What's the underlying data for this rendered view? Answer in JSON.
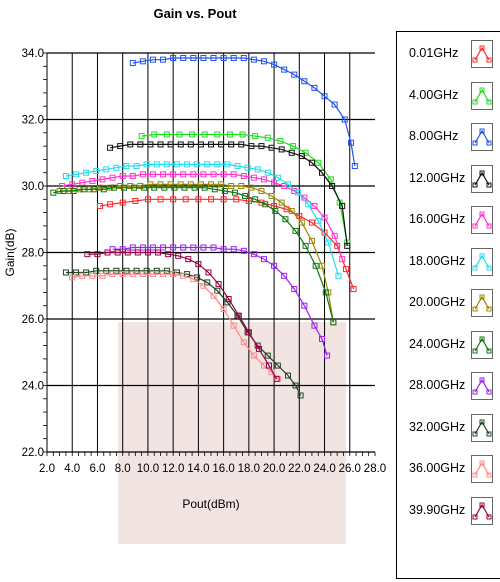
{
  "chart_data": {
    "type": "line",
    "title": "Gain vs. Pout",
    "xlabel": "Pout(dBm)",
    "ylabel": "Gain(dB)",
    "xlim": [
      2.0,
      28.0
    ],
    "ylim": [
      22.0,
      34.0
    ],
    "xticks": [
      "2.0",
      "4.0",
      "6.0",
      "8.0",
      "10.0",
      "12.0",
      "14.0",
      "16.0",
      "18.0",
      "20.0",
      "22.0",
      "24.0",
      "26.0",
      "28.0"
    ],
    "yticks": [
      "22.0",
      "24.0",
      "26.0",
      "28.0",
      "30.0",
      "32.0",
      "34.0"
    ],
    "grid": true,
    "legend_position": "right",
    "series": [
      {
        "name": "0.01GHz",
        "color": "#ff2a2a",
        "x": [
          6.2,
          7.0,
          8.0,
          9.0,
          10.0,
          11.0,
          12.0,
          13.0,
          14.0,
          15.0,
          16.0,
          17.0,
          18.0,
          19.0,
          20.0,
          21.0,
          22.0,
          23.0,
          24.0,
          25.0,
          25.7,
          26.3
        ],
        "y": [
          29.4,
          29.45,
          29.5,
          29.55,
          29.6,
          29.6,
          29.6,
          29.6,
          29.6,
          29.6,
          29.6,
          29.6,
          29.55,
          29.5,
          29.4,
          29.3,
          29.1,
          28.9,
          28.6,
          28.2,
          27.5,
          26.9
        ]
      },
      {
        "name": "4.00GHz",
        "color": "#22dd22",
        "x": [
          9.5,
          10.5,
          11.5,
          12.5,
          13.5,
          14.5,
          15.5,
          16.5,
          17.5,
          18.5,
          19.5,
          20.5,
          21.5,
          22.5,
          23.5,
          24.5,
          25.2,
          25.8
        ],
        "y": [
          31.5,
          31.55,
          31.55,
          31.55,
          31.55,
          31.55,
          31.55,
          31.55,
          31.55,
          31.5,
          31.45,
          31.35,
          31.2,
          31.0,
          30.7,
          30.2,
          29.5,
          28.3
        ]
      },
      {
        "name": "8.00GHz",
        "color": "#2255ee",
        "x": [
          8.8,
          9.6,
          10.4,
          11.2,
          12.0,
          12.8,
          13.6,
          14.4,
          15.2,
          16.0,
          16.8,
          17.6,
          18.4,
          19.2,
          20.0,
          20.8,
          21.6,
          22.4,
          23.2,
          24.0,
          24.8,
          25.6,
          26.1,
          26.4
        ],
        "y": [
          33.7,
          33.75,
          33.8,
          33.8,
          33.85,
          33.85,
          33.85,
          33.85,
          33.85,
          33.85,
          33.85,
          33.85,
          33.8,
          33.75,
          33.65,
          33.5,
          33.35,
          33.15,
          32.95,
          32.7,
          32.45,
          32.0,
          31.3,
          30.6
        ]
      },
      {
        "name": "12.00GHz",
        "color": "#111111",
        "x": [
          7.0,
          7.8,
          8.6,
          9.4,
          10.2,
          11.0,
          11.8,
          12.6,
          13.4,
          14.2,
          15.0,
          15.8,
          16.6,
          17.4,
          18.2,
          19.0,
          19.8,
          20.6,
          21.4,
          22.2,
          23.0,
          23.8,
          24.6,
          25.4,
          25.8
        ],
        "y": [
          31.15,
          31.2,
          31.25,
          31.25,
          31.25,
          31.25,
          31.25,
          31.25,
          31.25,
          31.25,
          31.25,
          31.25,
          31.25,
          31.25,
          31.2,
          31.2,
          31.15,
          31.1,
          31.0,
          30.9,
          30.7,
          30.4,
          30.0,
          29.4,
          28.2
        ]
      },
      {
        "name": "16.00GHz",
        "color": "#ff33cc",
        "x": [
          3.2,
          4.0,
          4.8,
          5.6,
          6.4,
          7.2,
          8.0,
          8.8,
          9.6,
          10.4,
          11.2,
          12.0,
          12.8,
          13.6,
          14.4,
          15.2,
          16.0,
          16.8,
          17.6,
          18.4,
          19.2,
          20.0,
          20.8,
          21.6,
          22.4,
          23.2,
          24.0,
          24.8,
          25.4
        ],
        "y": [
          30.0,
          30.05,
          30.1,
          30.15,
          30.2,
          30.25,
          30.3,
          30.3,
          30.35,
          30.35,
          30.35,
          30.35,
          30.35,
          30.35,
          30.35,
          30.35,
          30.35,
          30.35,
          30.3,
          30.25,
          30.2,
          30.1,
          30.0,
          29.85,
          29.65,
          29.4,
          29.05,
          28.5,
          27.8
        ]
      },
      {
        "name": "18.00GHz",
        "color": "#22ddee",
        "x": [
          3.5,
          4.3,
          5.1,
          5.9,
          6.7,
          7.5,
          8.3,
          9.1,
          9.9,
          10.7,
          11.5,
          12.3,
          13.1,
          13.9,
          14.7,
          15.5,
          16.3,
          17.1,
          17.9,
          18.7,
          19.5,
          20.3,
          21.1,
          21.9,
          22.7,
          23.5,
          24.3,
          25.1
        ],
        "y": [
          30.3,
          30.35,
          30.4,
          30.45,
          30.5,
          30.55,
          30.6,
          30.6,
          30.65,
          30.65,
          30.65,
          30.65,
          30.65,
          30.65,
          30.65,
          30.65,
          30.65,
          30.6,
          30.55,
          30.5,
          30.4,
          30.25,
          30.05,
          29.8,
          29.45,
          28.95,
          28.3,
          27.3
        ]
      },
      {
        "name": "20.00GHz",
        "color": "#998800",
        "x": [
          3.0,
          3.8,
          4.6,
          5.4,
          6.2,
          7.0,
          7.8,
          8.6,
          9.4,
          10.2,
          11.0,
          11.8,
          12.6,
          13.4,
          14.2,
          15.0,
          15.8,
          16.6,
          17.4,
          18.2,
          19.0,
          19.8,
          20.6,
          21.4,
          22.2,
          23.0,
          23.8,
          24.3,
          24.7
        ],
        "y": [
          29.85,
          29.85,
          29.9,
          29.9,
          29.95,
          29.95,
          30.0,
          30.0,
          30.0,
          30.05,
          30.05,
          30.05,
          30.05,
          30.05,
          30.05,
          30.05,
          30.05,
          30.0,
          30.0,
          29.95,
          29.85,
          29.7,
          29.5,
          29.25,
          28.9,
          28.35,
          27.6,
          26.8,
          25.9
        ]
      },
      {
        "name": "24.00GHz",
        "color": "#117711",
        "x": [
          2.5,
          3.3,
          4.1,
          4.9,
          5.7,
          6.5,
          7.3,
          8.1,
          8.9,
          9.7,
          10.5,
          11.3,
          12.1,
          12.9,
          13.7,
          14.5,
          15.3,
          16.1,
          16.9,
          17.7,
          18.5,
          19.3,
          20.1,
          20.9,
          21.7,
          22.5,
          23.3,
          24.1,
          24.7
        ],
        "y": [
          29.8,
          29.85,
          29.85,
          29.9,
          29.9,
          29.9,
          29.95,
          29.95,
          29.95,
          29.95,
          29.95,
          29.95,
          29.95,
          29.95,
          29.95,
          29.95,
          29.9,
          29.85,
          29.8,
          29.7,
          29.6,
          29.45,
          29.25,
          29.0,
          28.65,
          28.2,
          27.6,
          26.8,
          25.9
        ]
      },
      {
        "name": "28.00GHz",
        "color": "#9922ee",
        "x": [
          7.2,
          8.0,
          8.8,
          9.6,
          10.4,
          11.2,
          12.0,
          12.8,
          13.6,
          14.4,
          15.2,
          16.0,
          16.8,
          17.6,
          18.4,
          19.2,
          20.0,
          20.8,
          21.6,
          22.4,
          23.2,
          23.8,
          24.2
        ],
        "y": [
          28.1,
          28.1,
          28.15,
          28.15,
          28.15,
          28.15,
          28.15,
          28.15,
          28.15,
          28.15,
          28.15,
          28.1,
          28.1,
          28.05,
          27.95,
          27.8,
          27.6,
          27.3,
          26.9,
          26.4,
          25.8,
          25.4,
          24.9
        ]
      },
      {
        "name": "32.00GHz",
        "color": "#224422",
        "x": [
          3.5,
          4.3,
          5.1,
          5.9,
          6.7,
          7.5,
          8.3,
          9.1,
          9.9,
          10.7,
          11.5,
          12.3,
          13.1,
          13.9,
          14.7,
          15.5,
          16.3,
          17.1,
          17.9,
          18.7,
          19.5,
          20.3,
          21.1,
          21.7,
          22.1
        ],
        "y": [
          27.4,
          27.4,
          27.4,
          27.45,
          27.45,
          27.45,
          27.45,
          27.45,
          27.45,
          27.45,
          27.45,
          27.4,
          27.35,
          27.25,
          27.1,
          26.85,
          26.5,
          26.1,
          25.6,
          25.2,
          24.9,
          24.6,
          24.3,
          24.0,
          23.7
        ]
      },
      {
        "name": "36.00GHz",
        "color": "#ff8888",
        "x": [
          4.0,
          4.8,
          5.6,
          6.4,
          7.2,
          8.0,
          8.8,
          9.6,
          10.4,
          11.2,
          12.0,
          12.8,
          13.6,
          14.4,
          15.2,
          16.0,
          16.8,
          17.6,
          18.4,
          19.2,
          19.8,
          20.3
        ],
        "y": [
          27.25,
          27.3,
          27.3,
          27.3,
          27.35,
          27.35,
          27.35,
          27.35,
          27.35,
          27.35,
          27.35,
          27.3,
          27.2,
          27.0,
          26.7,
          26.3,
          25.8,
          25.3,
          24.9,
          24.6,
          24.4,
          24.2
        ]
      },
      {
        "name": "39.90GHz",
        "color": "#990044",
        "x": [
          5.2,
          6.0,
          6.8,
          7.6,
          8.4,
          9.2,
          10.0,
          10.8,
          11.6,
          12.4,
          13.2,
          14.0,
          14.8,
          15.6,
          16.4,
          17.2,
          18.0,
          18.8,
          19.6,
          20.2
        ],
        "y": [
          27.95,
          27.95,
          28.0,
          28.0,
          28.0,
          28.0,
          28.0,
          28.0,
          27.95,
          27.9,
          27.8,
          27.65,
          27.4,
          27.05,
          26.6,
          26.1,
          25.6,
          25.1,
          24.6,
          24.2
        ]
      }
    ]
  }
}
